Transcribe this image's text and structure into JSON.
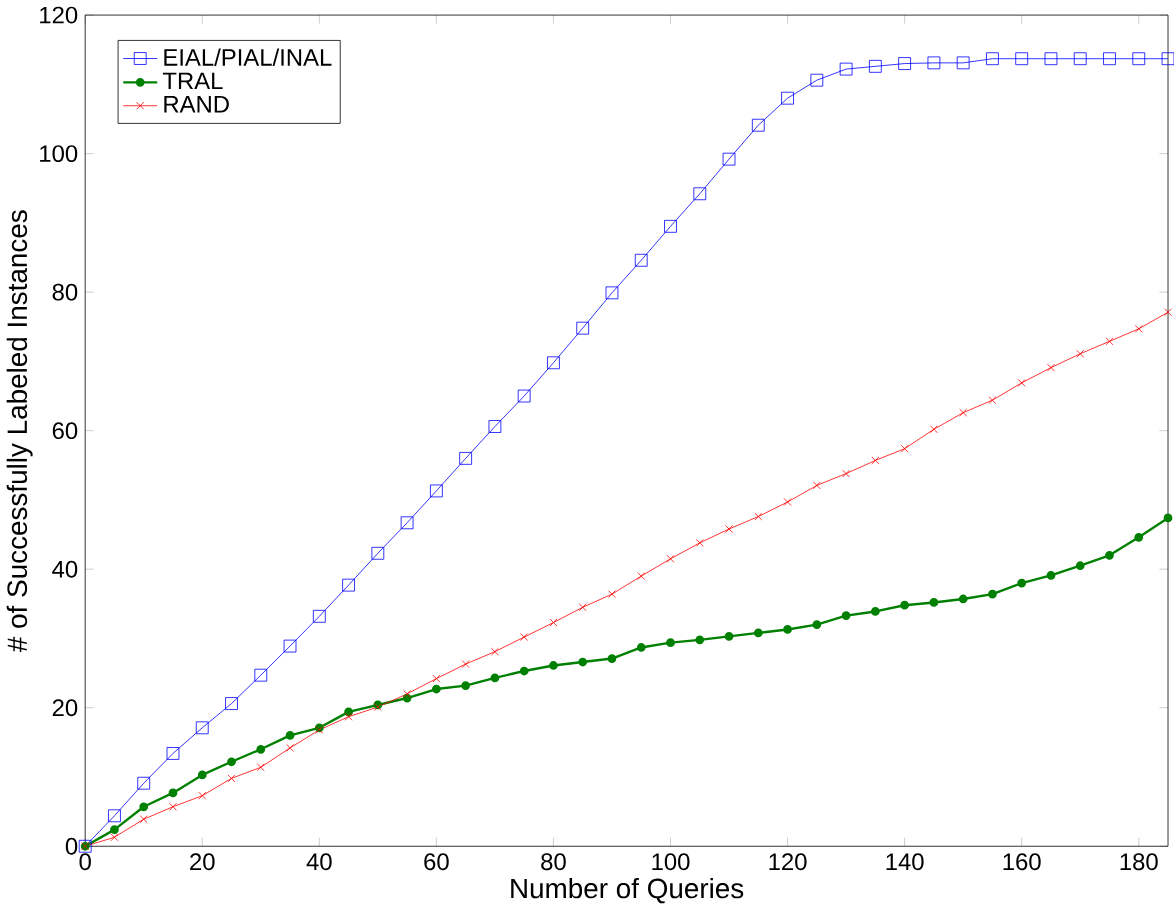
{
  "chart_data": {
    "type": "line",
    "xlabel": "Number of Queries",
    "ylabel": "# of Successfully Labeled Instances",
    "x": [
      0,
      5,
      10,
      15,
      20,
      25,
      30,
      35,
      40,
      45,
      50,
      55,
      60,
      65,
      70,
      75,
      80,
      85,
      90,
      95,
      100,
      105,
      110,
      115,
      120,
      125,
      130,
      135,
      140,
      145,
      150,
      155,
      160,
      165,
      170,
      175,
      180,
      185
    ],
    "series": [
      {
        "name": "EIAL/PIAL/INAL",
        "color": "#0000ff",
        "marker": "square",
        "values": [
          0,
          4.4,
          9.1,
          13.4,
          17.1,
          20.6,
          24.7,
          28.9,
          33.2,
          37.7,
          42.3,
          46.7,
          51.3,
          56,
          60.6,
          65,
          69.8,
          74.8,
          79.9,
          84.6,
          89.5,
          94.2,
          99.2,
          104.1,
          108,
          110.6,
          112.2,
          112.6,
          113,
          113.1,
          113.1,
          113.7,
          113.7,
          113.7,
          113.7,
          113.7,
          113.7,
          113.7
        ]
      },
      {
        "name": "TRAL",
        "color": "#008000",
        "marker": "circle",
        "values": [
          0,
          2.4,
          5.7,
          7.7,
          10.3,
          12.2,
          14,
          16,
          17.1,
          19.4,
          20.4,
          21.4,
          22.7,
          23.2,
          24.3,
          25.3,
          26.1,
          26.6,
          27.1,
          28.7,
          29.4,
          29.8,
          30.3,
          30.8,
          31.3,
          32,
          33.3,
          33.9,
          34.8,
          35.2,
          35.7,
          36.4,
          38,
          39.1,
          40.5,
          42,
          44.6,
          47.4
        ]
      },
      {
        "name": "RAND",
        "color": "#ff0000",
        "marker": "cross",
        "values": [
          0,
          1.3,
          3.9,
          5.7,
          7.3,
          9.8,
          11.4,
          14.2,
          16.8,
          18.7,
          20.1,
          22,
          24.2,
          26.3,
          28.1,
          30.2,
          32.3,
          34.5,
          36.4,
          39,
          41.5,
          43.8,
          45.8,
          47.6,
          49.7,
          52.1,
          53.8,
          55.7,
          57.4,
          60.2,
          62.6,
          64.4,
          66.9,
          69.1,
          71.1,
          72.9,
          74.7,
          77.1
        ]
      }
    ],
    "xlim": [
      0,
      185
    ],
    "ylim": [
      0,
      120
    ],
    "xticks": [
      0,
      20,
      40,
      60,
      80,
      100,
      120,
      140,
      160,
      180
    ],
    "yticks": [
      0,
      20,
      40,
      60,
      80,
      100,
      120
    ],
    "legend": "top left",
    "grid": false,
    "line_style": "solid"
  }
}
